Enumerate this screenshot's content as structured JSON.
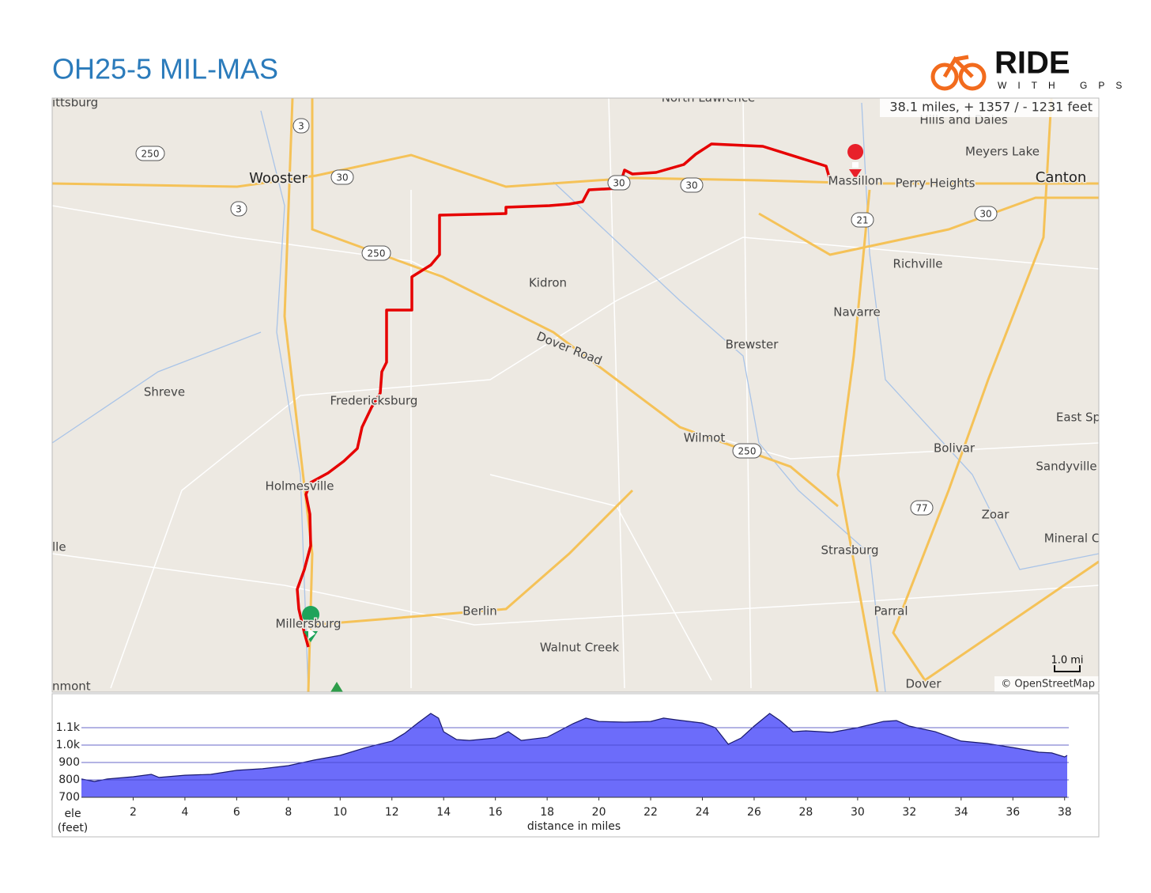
{
  "header": {
    "title": "OH25-5 MIL-MAS",
    "logo_word": "RIDE",
    "logo_sub": "WITH GPS"
  },
  "map": {
    "summary": "38.1 miles, + 1357 / - 1231 feet",
    "scale": "1.0 mi",
    "attribution": "© OpenStreetMap",
    "places": [
      "ittsburg",
      "Wooster",
      "North Lawrence",
      "Hills and Dales",
      "Meyers Lake",
      "Massillon",
      "Perry Heights",
      "Canton",
      "Richville",
      "Kidron",
      "Navarre",
      "Dover Road",
      "Brewster",
      "Shreve",
      "Fredericksburg",
      "Wilmot",
      "Bolivar",
      "East Sp",
      "Sandyville",
      "Holmesville",
      "Zoar",
      "lle",
      "Mineral C",
      "Strasburg",
      "Berlin",
      "Parral",
      "Millersburg",
      "Walnut Creek",
      "nmont",
      "Dover"
    ],
    "shields": [
      "3",
      "250",
      "30",
      "3",
      "250",
      "30",
      "30",
      "21",
      "30",
      "250",
      "77"
    ]
  },
  "chart_data": {
    "type": "area",
    "x_label": "distance in miles",
    "y_label": "ele",
    "y_unit": "(feet)",
    "color": "#6464fa",
    "x": [
      0,
      0.5,
      1,
      2,
      2.7,
      3,
      4,
      5,
      6,
      7,
      8,
      9,
      10,
      11,
      12,
      12.5,
      13,
      13.5,
      13.8,
      14,
      14.5,
      15,
      16,
      16.5,
      17,
      18,
      19,
      19.5,
      20,
      21,
      22,
      22.5,
      23,
      24,
      24.5,
      25,
      25.5,
      26,
      26.6,
      27,
      27.5,
      28,
      29,
      30,
      31,
      31.5,
      32,
      33,
      34,
      35,
      36,
      37,
      37.5,
      38,
      38.1
    ],
    "values": [
      805,
      791,
      805,
      818,
      832,
      814,
      827,
      832,
      855,
      864,
      882,
      914,
      941,
      986,
      1023,
      1068,
      1127,
      1182,
      1155,
      1077,
      1032,
      1027,
      1041,
      1077,
      1027,
      1045,
      1123,
      1155,
      1136,
      1132,
      1136,
      1155,
      1145,
      1127,
      1100,
      1005,
      1041,
      1109,
      1182,
      1141,
      1077,
      1082,
      1073,
      1100,
      1136,
      1141,
      1109,
      1077,
      1023,
      1009,
      986,
      959,
      955,
      932,
      941
    ],
    "xlim": [
      0,
      38.1
    ],
    "ylim": [
      700,
      1200
    ],
    "xticks": [
      2,
      4,
      6,
      8,
      10,
      12,
      14,
      16,
      18,
      20,
      22,
      24,
      26,
      28,
      30,
      32,
      34,
      36,
      38
    ],
    "yticks": [
      700,
      800,
      900,
      {
        "value": 1000,
        "label": "1.0k"
      },
      {
        "value": 1100,
        "label": "1.1k"
      }
    ],
    "grid": true
  }
}
